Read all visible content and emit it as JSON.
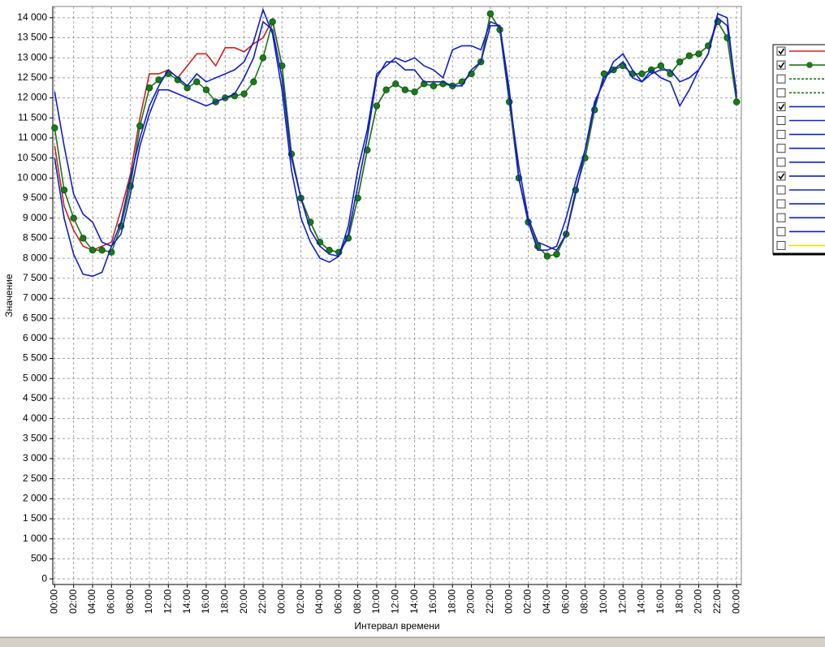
{
  "chart_data": {
    "type": "line",
    "ylabel": "Значение",
    "xlabel": "Интервал времени",
    "grid": true,
    "xlim": [
      -0.2,
      72.5
    ],
    "ylim": [
      -140,
      14280
    ],
    "x": [
      0,
      1,
      2,
      3,
      4,
      5,
      6,
      7,
      8,
      9,
      10,
      11,
      12,
      13,
      14,
      15,
      16,
      17,
      18,
      19,
      20,
      21,
      22,
      23,
      24,
      25,
      26,
      27,
      28,
      29,
      30,
      31,
      32,
      33,
      34,
      35,
      36,
      37,
      38,
      39,
      40,
      41,
      42,
      43,
      44,
      45,
      46,
      47,
      48,
      49,
      50,
      51,
      52,
      53,
      54,
      55,
      56,
      57,
      58,
      59,
      60,
      61,
      62,
      63,
      64,
      65,
      66,
      67,
      68,
      69,
      70,
      71,
      72
    ],
    "xticks": [
      {
        "value": 0,
        "label": "00:00"
      },
      {
        "value": 2,
        "label": "02:00"
      },
      {
        "value": 4,
        "label": "04:00"
      },
      {
        "value": 6,
        "label": "06:00"
      },
      {
        "value": 8,
        "label": "08:00"
      },
      {
        "value": 10,
        "label": "10:00"
      },
      {
        "value": 12,
        "label": "12:00"
      },
      {
        "value": 14,
        "label": "14:00"
      },
      {
        "value": 16,
        "label": "16:00"
      },
      {
        "value": 18,
        "label": "18:00"
      },
      {
        "value": 20,
        "label": "20:00"
      },
      {
        "value": 22,
        "label": "22:00"
      },
      {
        "value": 24,
        "label": "00:00"
      },
      {
        "value": 26,
        "label": "02:00"
      },
      {
        "value": 28,
        "label": "04:00"
      },
      {
        "value": 30,
        "label": "06:00"
      },
      {
        "value": 32,
        "label": "08:00"
      },
      {
        "value": 34,
        "label": "10:00"
      },
      {
        "value": 36,
        "label": "12:00"
      },
      {
        "value": 38,
        "label": "14:00"
      },
      {
        "value": 40,
        "label": "16:00"
      },
      {
        "value": 42,
        "label": "18:00"
      },
      {
        "value": 44,
        "label": "20:00"
      },
      {
        "value": 46,
        "label": "22:00"
      },
      {
        "value": 48,
        "label": "00:00"
      },
      {
        "value": 50,
        "label": "02:00"
      },
      {
        "value": 52,
        "label": "04:00"
      },
      {
        "value": 54,
        "label": "06:00"
      },
      {
        "value": 56,
        "label": "08:00"
      },
      {
        "value": 58,
        "label": "10:00"
      },
      {
        "value": 60,
        "label": "12:00"
      },
      {
        "value": 62,
        "label": "14:00"
      },
      {
        "value": 64,
        "label": "16:00"
      },
      {
        "value": 66,
        "label": "18:00"
      },
      {
        "value": 68,
        "label": "20:00"
      },
      {
        "value": 70,
        "label": "22:00"
      },
      {
        "value": 72,
        "label": "00:00"
      }
    ],
    "yticks": [
      0,
      500,
      {
        "value": 1000,
        "label": "1 000"
      },
      {
        "value": 1500,
        "label": "1 500"
      },
      {
        "value": 2000,
        "label": "2 000"
      },
      {
        "value": 2500,
        "label": "2 500"
      },
      {
        "value": 3000,
        "label": "3 000"
      },
      {
        "value": 3500,
        "label": "3 500"
      },
      {
        "value": 4000,
        "label": "4 000"
      },
      {
        "value": 4500,
        "label": "4 500"
      },
      {
        "value": 5000,
        "label": "5 000"
      },
      {
        "value": 5500,
        "label": "5 500"
      },
      {
        "value": 6000,
        "label": "6 000"
      },
      {
        "value": 6500,
        "label": "6 500"
      },
      {
        "value": 7000,
        "label": "7 000"
      },
      {
        "value": 7500,
        "label": "7 500"
      },
      {
        "value": 8000,
        "label": "8 000"
      },
      {
        "value": 8500,
        "label": "8 500"
      },
      {
        "value": 9000,
        "label": "9 000"
      },
      {
        "value": 9500,
        "label": "9 500"
      },
      {
        "value": 10000,
        "label": "10 000"
      },
      {
        "value": 10500,
        "label": "10 500"
      },
      {
        "value": 11000,
        "label": "11 000"
      },
      {
        "value": 11500,
        "label": "11 500"
      },
      {
        "value": 12000,
        "label": "12 000"
      },
      {
        "value": 12500,
        "label": "12 500"
      },
      {
        "value": 13000,
        "label": "13 000"
      },
      {
        "value": 13500,
        "label": "13 500"
      },
      {
        "value": 14000,
        "label": "14 000"
      }
    ],
    "series": [
      {
        "color": "#cc2020",
        "marker": false,
        "values": [
          10800,
          9300,
          8700,
          8300,
          8200,
          8300,
          8400,
          9200,
          10100,
          11500,
          12600,
          12600,
          12700,
          12500,
          12800,
          13100,
          13100,
          12800,
          13250,
          13250,
          13150,
          13350,
          13500,
          13950,
          12800,
          10600,
          9500,
          8900,
          8400,
          8200,
          8150,
          8500,
          9500,
          10700,
          11800,
          12200,
          12350,
          12200,
          12150,
          12350,
          12300,
          12350,
          12300,
          12400,
          12600,
          12900,
          14100,
          13700,
          11900,
          10000,
          8900,
          8300,
          8050,
          8100,
          8600,
          9700,
          10500,
          11700,
          12600,
          12700,
          12800,
          12600,
          12600,
          12700,
          12800,
          12600,
          12900,
          13050,
          13100,
          13300,
          13900,
          13500,
          11900
        ]
      },
      {
        "color": "#1a7a1a",
        "marker": true,
        "values": [
          11250,
          9700,
          9000,
          8500,
          8200,
          8200,
          8150,
          8800,
          9800,
          11300,
          12250,
          12450,
          12600,
          12450,
          12250,
          12400,
          12200,
          11900,
          12000,
          12050,
          12100,
          12400,
          13000,
          13900,
          12800,
          10600,
          9500,
          8900,
          8400,
          8200,
          8150,
          8500,
          9500,
          10700,
          11800,
          12200,
          12350,
          12200,
          12150,
          12350,
          12300,
          12350,
          12300,
          12400,
          12600,
          12900,
          14100,
          13700,
          11900,
          10000,
          8900,
          8300,
          8050,
          8100,
          8600,
          9700,
          10500,
          11700,
          12600,
          12700,
          12800,
          12600,
          12600,
          12700,
          12800,
          12600,
          12900,
          13050,
          13100,
          13300,
          13900,
          13500,
          11900
        ]
      },
      {
        "color": "#1020c0",
        "marker": false,
        "values": [
          12150,
          10800,
          9600,
          9100,
          8900,
          8400,
          8300,
          8600,
          9600,
          10800,
          11600,
          12200,
          12200,
          12100,
          12000,
          11900,
          11800,
          11900,
          12000,
          12100,
          12500,
          13000,
          13900,
          13700,
          12500,
          10500,
          9500,
          8700,
          8300,
          8100,
          8050,
          8600,
          9800,
          11000,
          12500,
          12900,
          12900,
          12700,
          12700,
          12400,
          12400,
          12400,
          12300,
          12300,
          12700,
          12900,
          13800,
          13800,
          12000,
          10300,
          9000,
          8400,
          8300,
          8200,
          8600,
          9600,
          10700,
          11800,
          12500,
          12700,
          12900,
          12500,
          12400,
          12700,
          12500,
          12400,
          11800,
          12200,
          12700,
          13100,
          14000,
          13800,
          12100
        ]
      },
      {
        "color": "#1020c0",
        "marker": false,
        "values": [
          10500,
          9000,
          8100,
          7600,
          7550,
          7650,
          8300,
          8900,
          10000,
          11000,
          11800,
          12300,
          12700,
          12500,
          12300,
          12600,
          12400,
          12500,
          12600,
          12700,
          12900,
          13400,
          14200,
          13600,
          12200,
          10200,
          9000,
          8400,
          8000,
          7900,
          8050,
          8800,
          10200,
          11200,
          12600,
          12800,
          13000,
          12900,
          13000,
          12800,
          12700,
          12500,
          13200,
          13300,
          13300,
          13200,
          13900,
          13800,
          12200,
          10000,
          8900,
          8200,
          8200,
          8300,
          9000,
          9900,
          10700,
          11900,
          12400,
          12900,
          13100,
          12700,
          12400,
          12600,
          12700,
          12700,
          12400,
          12500,
          12700,
          13100,
          14100,
          14000,
          12000
        ]
      }
    ],
    "legend": {
      "position": "right",
      "entries": [
        {
          "checked": true,
          "color": "#cc2020",
          "dashed": false,
          "marker": false
        },
        {
          "checked": true,
          "color": "#1a7a1a",
          "dashed": false,
          "marker": true
        },
        {
          "checked": false,
          "color": "#1a7a1a",
          "dashed": true,
          "marker": false
        },
        {
          "checked": false,
          "color": "#1a7a1a",
          "dashed": true,
          "marker": false
        },
        {
          "checked": true,
          "color": "#1020c0",
          "dashed": false,
          "marker": false
        },
        {
          "checked": false,
          "color": "#1020c0",
          "dashed": false,
          "marker": false
        },
        {
          "checked": false,
          "color": "#1020c0",
          "dashed": false,
          "marker": false
        },
        {
          "checked": false,
          "color": "#1020c0",
          "dashed": false,
          "marker": false
        },
        {
          "checked": false,
          "color": "#1020c0",
          "dashed": false,
          "marker": false
        },
        {
          "checked": true,
          "color": "#1020c0",
          "dashed": false,
          "marker": false
        },
        {
          "checked": false,
          "color": "#1020c0",
          "dashed": false,
          "marker": false
        },
        {
          "checked": false,
          "color": "#1020c0",
          "dashed": false,
          "marker": false
        },
        {
          "checked": false,
          "color": "#1020c0",
          "dashed": false,
          "marker": false
        },
        {
          "checked": false,
          "color": "#1020c0",
          "dashed": false,
          "marker": false
        },
        {
          "checked": false,
          "color": "#f0e000",
          "dashed": false,
          "marker": false
        }
      ]
    }
  }
}
